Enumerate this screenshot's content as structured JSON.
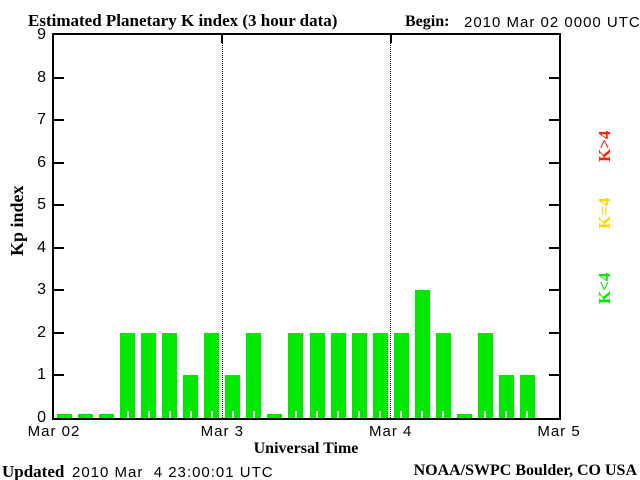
{
  "title": "Estimated Planetary K index (3 hour data)",
  "begin": {
    "label": "Begin:",
    "value": "2010 Mar 02 0000 UTC"
  },
  "footer": {
    "updated_label": "Updated",
    "updated_value": "2010 Mar  4 23:00:01 UTC",
    "source": "NOAA/SWPC Boulder, CO USA"
  },
  "chart_data": {
    "type": "bar",
    "title": "Estimated Planetary K index (3 hour data)",
    "xlabel": "Universal Time",
    "ylabel": "Kp index",
    "ylim": [
      0,
      9
    ],
    "yticks": [
      0,
      1,
      2,
      3,
      4,
      5,
      6,
      7,
      8,
      9
    ],
    "grid": "off",
    "x_day_labels": [
      "Mar 02",
      "Mar 3",
      "Mar 4",
      "Mar 5"
    ],
    "slots_per_day": 8,
    "days_shown": 3,
    "series": [
      {
        "day": "Mar 02",
        "hours_utc": [
          0,
          3,
          6,
          9,
          12,
          15,
          18,
          21
        ],
        "values": [
          0,
          0,
          0,
          2,
          2,
          2,
          1,
          2
        ]
      },
      {
        "day": "Mar 3",
        "hours_utc": [
          0,
          3,
          6,
          9,
          12,
          15,
          18,
          21
        ],
        "values": [
          1,
          2,
          0,
          2,
          2,
          2,
          2,
          2
        ]
      },
      {
        "day": "Mar 4",
        "hours_utc": [
          0,
          3,
          6,
          9,
          12,
          15,
          18
        ],
        "values": [
          2,
          3,
          2,
          0,
          2,
          1,
          1
        ]
      }
    ],
    "colors": {
      "k_lt_4": "#00e800",
      "k_eq_4": "#ffd700",
      "k_gt_4": "#ff2200"
    },
    "legend": [
      {
        "label": "K>4",
        "color": "#ff2200"
      },
      {
        "label": "K=4",
        "color": "#ffd700"
      },
      {
        "label": "K<4",
        "color": "#00e800"
      }
    ],
    "legend_position": "right"
  }
}
